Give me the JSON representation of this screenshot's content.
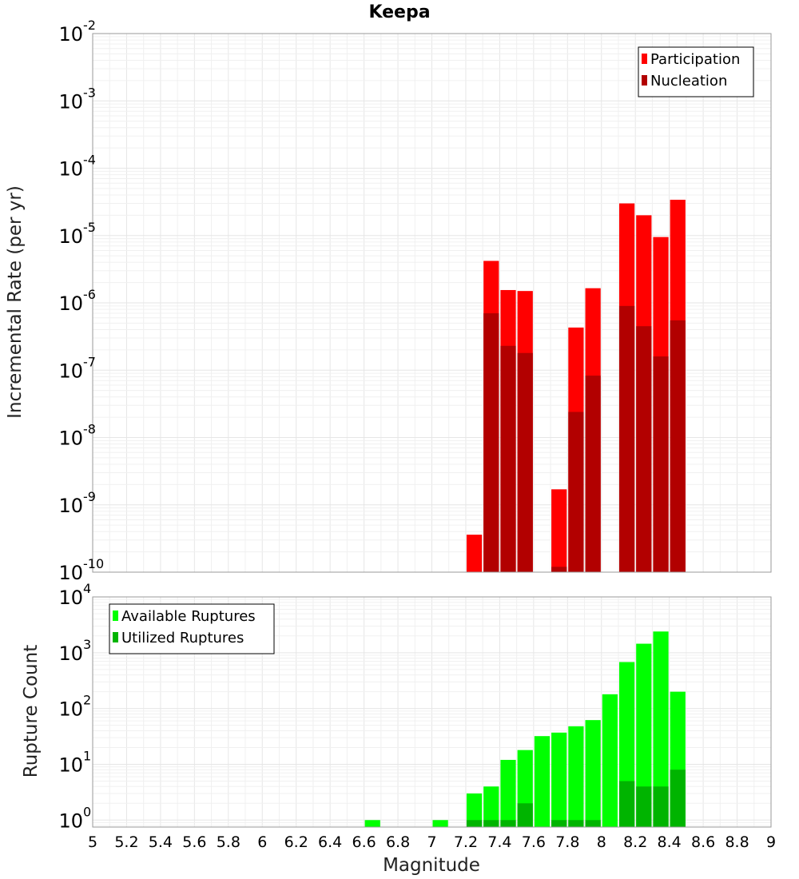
{
  "title": "Keepa",
  "x_axis": {
    "label": "Magnitude",
    "ticks": [
      "5",
      "5.2",
      "5.4",
      "5.6",
      "5.8",
      "6",
      "6.2",
      "6.4",
      "6.6",
      "6.8",
      "7",
      "7.2",
      "7.4",
      "7.6",
      "7.8",
      "8",
      "8.2",
      "8.4",
      "8.6",
      "8.8",
      "9"
    ]
  },
  "chart_data": [
    {
      "type": "bar",
      "scale": "log",
      "ylabel": "Incremental Rate (per yr)",
      "ylim": [
        1e-10,
        0.01
      ],
      "xlim": [
        5,
        9
      ],
      "y_ticks": [
        {
          "base": "10",
          "exp": "-2"
        },
        {
          "base": "10",
          "exp": "-3"
        },
        {
          "base": "10",
          "exp": "-4"
        },
        {
          "base": "10",
          "exp": "-5"
        },
        {
          "base": "10",
          "exp": "-6"
        },
        {
          "base": "10",
          "exp": "-7"
        },
        {
          "base": "10",
          "exp": "-8"
        },
        {
          "base": "10",
          "exp": "-9"
        },
        {
          "base": "10",
          "exp": "-10"
        }
      ],
      "legend": {
        "position": "top-right",
        "entries": [
          {
            "name": "Participation",
            "color": "#ff0000"
          },
          {
            "name": "Nucleation",
            "color": "#b20000"
          }
        ]
      },
      "bar_width": 0.1,
      "series": [
        {
          "name": "Participation",
          "color": "#ff0000",
          "x": [
            7.25,
            7.35,
            7.45,
            7.55,
            7.75,
            7.85,
            7.95,
            8.15,
            8.25,
            8.35,
            8.45
          ],
          "values": [
            3.6e-10,
            4.2e-06,
            1.55e-06,
            1.5e-06,
            1.7e-09,
            4.3e-07,
            1.65e-06,
            3e-05,
            2e-05,
            9.5e-06,
            3.4e-05
          ]
        },
        {
          "name": "Nucleation",
          "color": "#b20000",
          "x": [
            7.35,
            7.45,
            7.55,
            7.75,
            7.85,
            7.95,
            8.15,
            8.25,
            8.35,
            8.45
          ],
          "values": [
            7e-07,
            2.3e-07,
            1.8e-07,
            1.2e-10,
            2.4e-08,
            8.3e-08,
            9e-07,
            4.5e-07,
            1.6e-07,
            5.5e-07
          ]
        }
      ]
    },
    {
      "type": "bar",
      "scale": "log",
      "ylabel": "Rupture Count",
      "ylim": [
        0.75,
        10000
      ],
      "xlim": [
        5,
        9
      ],
      "y_ticks": [
        {
          "base": "10",
          "exp": "4"
        },
        {
          "base": "10",
          "exp": "3"
        },
        {
          "base": "10",
          "exp": "2"
        },
        {
          "base": "10",
          "exp": "1"
        },
        {
          "base": "10",
          "exp": "0"
        }
      ],
      "legend": {
        "position": "top-left",
        "entries": [
          {
            "name": "Available Ruptures",
            "color": "#00ff00"
          },
          {
            "name": "Utilized Ruptures",
            "color": "#00b400"
          }
        ]
      },
      "bar_width": 0.1,
      "series": [
        {
          "name": "Available Ruptures",
          "color": "#00ff00",
          "x": [
            6.65,
            7.05,
            7.25,
            7.35,
            7.45,
            7.55,
            7.65,
            7.75,
            7.85,
            7.95,
            8.05,
            8.15,
            8.25,
            8.35,
            8.45
          ],
          "values": [
            1,
            1,
            3,
            4,
            12,
            18,
            32,
            37,
            48,
            62,
            180,
            680,
            1450,
            2400,
            200
          ]
        },
        {
          "name": "Utilized Ruptures",
          "color": "#00b400",
          "x": [
            7.25,
            7.35,
            7.45,
            7.55,
            7.75,
            7.85,
            7.95,
            8.15,
            8.25,
            8.35,
            8.45
          ],
          "values": [
            1,
            1,
            1,
            2,
            1,
            1,
            1,
            5,
            4,
            4,
            8
          ]
        }
      ]
    }
  ]
}
